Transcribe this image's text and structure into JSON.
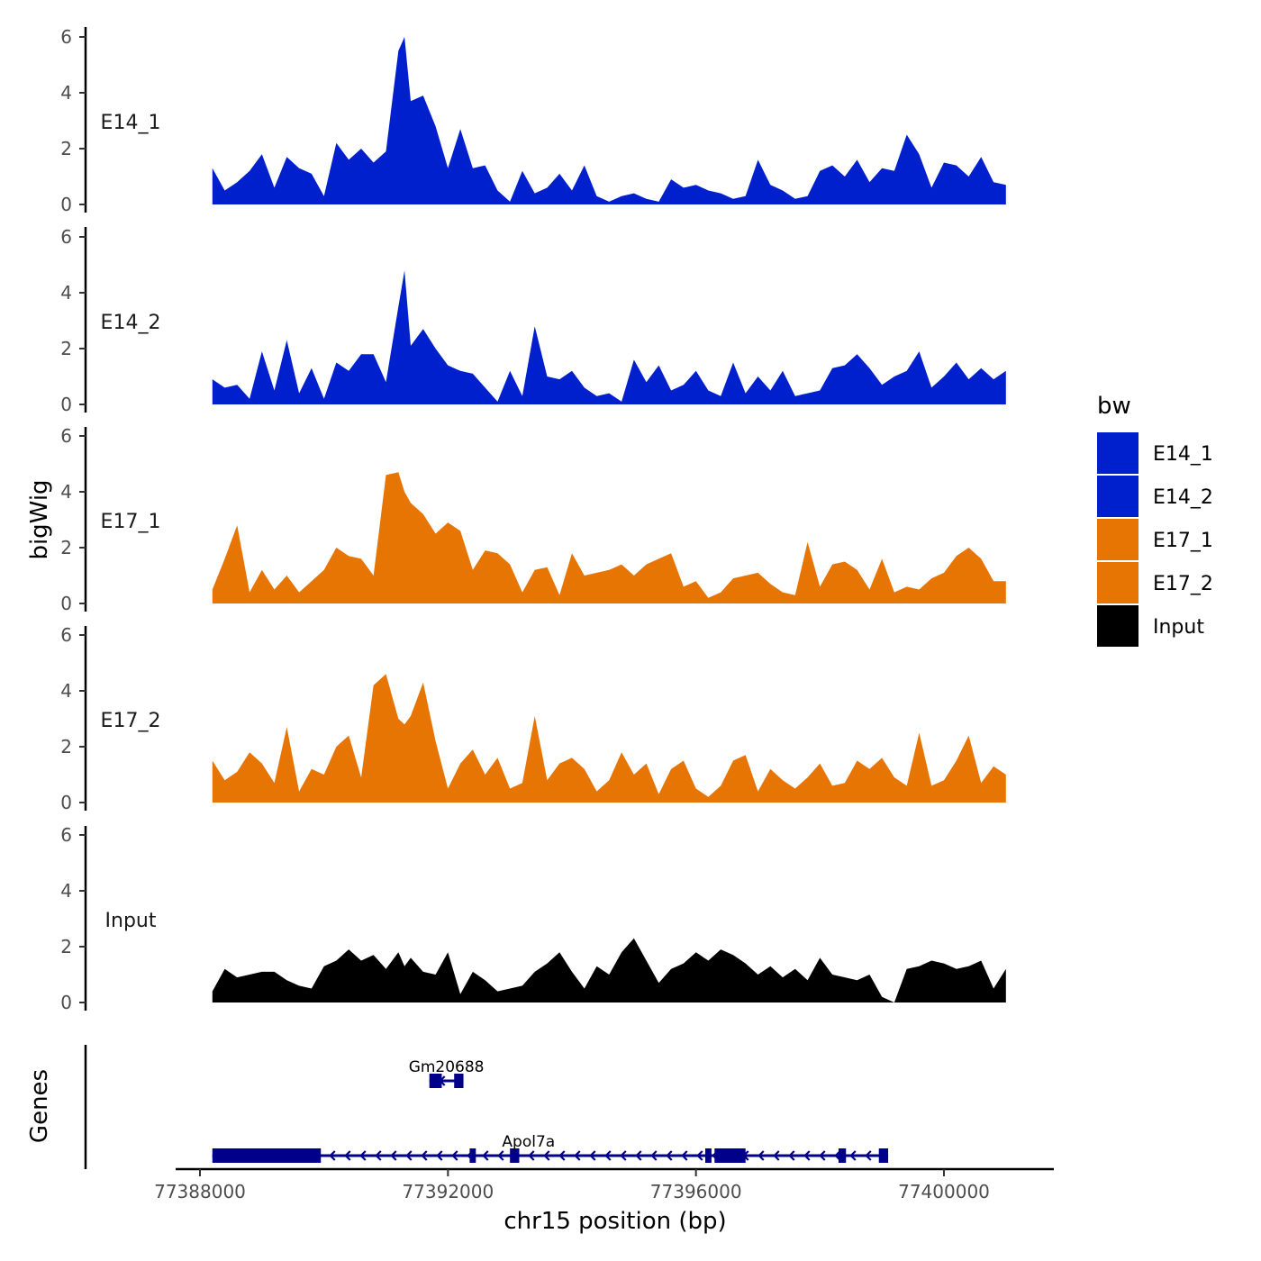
{
  "chart_data": {
    "type": "area",
    "ylabel": "bigWig",
    "xlabel": "chr15 position (bp)",
    "xlim": [
      77387600,
      77401800
    ],
    "ylim": [
      0,
      6.3
    ],
    "yticks": [
      0,
      2,
      4,
      6
    ],
    "xticks": [
      77388000,
      77392000,
      77396000,
      77400000
    ],
    "legend": {
      "title": "bw",
      "placement": "right",
      "entries": [
        {
          "name": "E14_1",
          "color": "#0020CD"
        },
        {
          "name": "E14_2",
          "color": "#0020CD"
        },
        {
          "name": "E17_1",
          "color": "#E77504"
        },
        {
          "name": "E17_2",
          "color": "#E77504"
        },
        {
          "name": "Input",
          "color": "#000000"
        }
      ]
    },
    "series": [
      {
        "name": "E14_1",
        "color": "#0020CD",
        "x": [
          77388200,
          77388400,
          77388600,
          77388800,
          77389000,
          77389200,
          77389400,
          77389600,
          77389800,
          77390000,
          77390200,
          77390400,
          77390600,
          77390800,
          77391000,
          77391200,
          77391300,
          77391400,
          77391600,
          77391800,
          77392000,
          77392200,
          77392400,
          77392600,
          77392800,
          77393000,
          77393200,
          77393400,
          77393600,
          77393800,
          77394000,
          77394200,
          77394400,
          77394600,
          77394800,
          77395000,
          77395200,
          77395400,
          77395600,
          77395800,
          77396000,
          77396200,
          77396400,
          77396600,
          77396800,
          77397000,
          77397200,
          77397400,
          77397600,
          77397800,
          77398000,
          77398200,
          77398400,
          77398600,
          77398800,
          77399000,
          77399200,
          77399400,
          77399600,
          77399800,
          77400000,
          77400200,
          77400400,
          77400600,
          77400800,
          77401000
        ],
        "values": [
          1.3,
          0.5,
          0.8,
          1.2,
          1.8,
          0.6,
          1.7,
          1.3,
          1.1,
          0.3,
          2.2,
          1.6,
          2.0,
          1.5,
          1.9,
          5.5,
          6.0,
          3.7,
          3.9,
          2.8,
          1.3,
          2.7,
          1.3,
          1.4,
          0.5,
          0.1,
          1.2,
          0.4,
          0.6,
          1.1,
          0.5,
          1.4,
          0.3,
          0.1,
          0.3,
          0.4,
          0.2,
          0.1,
          0.9,
          0.6,
          0.7,
          0.5,
          0.4,
          0.2,
          0.3,
          1.6,
          0.7,
          0.5,
          0.2,
          0.3,
          1.2,
          1.4,
          1.0,
          1.6,
          0.8,
          1.3,
          1.2,
          2.5,
          1.8,
          0.6,
          1.5,
          1.4,
          1.0,
          1.7,
          0.8,
          0.7
        ]
      },
      {
        "name": "E14_2",
        "color": "#0020CD",
        "x": [
          77388200,
          77388400,
          77388600,
          77388800,
          77389000,
          77389200,
          77389400,
          77389600,
          77389800,
          77390000,
          77390200,
          77390400,
          77390600,
          77390800,
          77391000,
          77391200,
          77391300,
          77391400,
          77391600,
          77391800,
          77392000,
          77392200,
          77392400,
          77392600,
          77392800,
          77393000,
          77393200,
          77393400,
          77393600,
          77393800,
          77394000,
          77394200,
          77394400,
          77394600,
          77394800,
          77395000,
          77395200,
          77395400,
          77395600,
          77395800,
          77396000,
          77396200,
          77396400,
          77396600,
          77396800,
          77397000,
          77397200,
          77397400,
          77397600,
          77397800,
          77398000,
          77398200,
          77398400,
          77398600,
          77398800,
          77399000,
          77399200,
          77399400,
          77399600,
          77399800,
          77400000,
          77400200,
          77400400,
          77400600,
          77400800,
          77401000
        ],
        "values": [
          0.9,
          0.6,
          0.7,
          0.2,
          1.9,
          0.5,
          2.3,
          0.4,
          1.3,
          0.2,
          1.5,
          1.2,
          1.8,
          1.8,
          0.8,
          3.5,
          4.8,
          2.1,
          2.7,
          2.0,
          1.4,
          1.2,
          1.1,
          0.6,
          0.1,
          1.2,
          0.3,
          2.8,
          1.0,
          0.9,
          1.2,
          0.6,
          0.3,
          0.4,
          0.1,
          1.6,
          0.8,
          1.4,
          0.5,
          0.7,
          1.2,
          0.5,
          0.3,
          1.5,
          0.4,
          1.0,
          0.5,
          1.2,
          0.3,
          0.4,
          0.5,
          1.3,
          1.4,
          1.8,
          1.3,
          0.7,
          1.0,
          1.2,
          1.9,
          0.6,
          1.0,
          1.5,
          0.9,
          1.3,
          0.9,
          1.2
        ]
      },
      {
        "name": "E17_1",
        "color": "#E77504",
        "x": [
          77388200,
          77388400,
          77388600,
          77388800,
          77389000,
          77389200,
          77389400,
          77389600,
          77389800,
          77390000,
          77390200,
          77390400,
          77390600,
          77390800,
          77391000,
          77391200,
          77391300,
          77391400,
          77391600,
          77391800,
          77392000,
          77392200,
          77392400,
          77392600,
          77392800,
          77393000,
          77393200,
          77393400,
          77393600,
          77393800,
          77394000,
          77394200,
          77394400,
          77394600,
          77394800,
          77395000,
          77395200,
          77395400,
          77395600,
          77395800,
          77396000,
          77396200,
          77396400,
          77396600,
          77396800,
          77397000,
          77397200,
          77397400,
          77397600,
          77397800,
          77398000,
          77398200,
          77398400,
          77398600,
          77398800,
          77399000,
          77399200,
          77399400,
          77399600,
          77399800,
          77400000,
          77400200,
          77400400,
          77400600,
          77400800,
          77401000
        ],
        "values": [
          0.5,
          1.6,
          2.8,
          0.4,
          1.2,
          0.5,
          1.0,
          0.4,
          0.8,
          1.2,
          2.0,
          1.7,
          1.6,
          1.0,
          4.6,
          4.7,
          4.0,
          3.6,
          3.2,
          2.5,
          2.9,
          2.6,
          1.2,
          1.9,
          1.8,
          1.4,
          0.4,
          1.2,
          1.3,
          0.3,
          1.8,
          1.0,
          1.1,
          1.2,
          1.4,
          1.0,
          1.4,
          1.6,
          1.8,
          0.6,
          0.8,
          0.2,
          0.4,
          0.9,
          1.0,
          1.1,
          0.7,
          0.4,
          0.3,
          2.2,
          0.6,
          1.4,
          1.5,
          1.2,
          0.5,
          1.6,
          0.4,
          0.6,
          0.5,
          0.9,
          1.1,
          1.7,
          2.0,
          1.6,
          0.8,
          0.8
        ]
      },
      {
        "name": "E17_2",
        "color": "#E77504",
        "x": [
          77388200,
          77388400,
          77388600,
          77388800,
          77389000,
          77389200,
          77389400,
          77389600,
          77389800,
          77390000,
          77390200,
          77390400,
          77390600,
          77390800,
          77391000,
          77391200,
          77391300,
          77391400,
          77391600,
          77391800,
          77392000,
          77392200,
          77392400,
          77392600,
          77392800,
          77393000,
          77393200,
          77393400,
          77393600,
          77393800,
          77394000,
          77394200,
          77394400,
          77394600,
          77394800,
          77395000,
          77395200,
          77395400,
          77395600,
          77395800,
          77396000,
          77396200,
          77396400,
          77396600,
          77396800,
          77397000,
          77397200,
          77397400,
          77397600,
          77397800,
          77398000,
          77398200,
          77398400,
          77398600,
          77398800,
          77399000,
          77399200,
          77399400,
          77399600,
          77399800,
          77400000,
          77400200,
          77400400,
          77400600,
          77400800,
          77401000
        ],
        "values": [
          1.5,
          0.8,
          1.1,
          1.8,
          1.4,
          0.7,
          2.7,
          0.4,
          1.2,
          1.0,
          2.0,
          2.4,
          0.9,
          4.2,
          4.6,
          3.0,
          2.8,
          3.1,
          4.3,
          2.2,
          0.5,
          1.4,
          1.9,
          1.0,
          1.6,
          0.5,
          0.7,
          3.1,
          0.8,
          1.4,
          1.6,
          1.2,
          0.4,
          0.8,
          1.8,
          1.0,
          1.4,
          0.3,
          1.2,
          1.5,
          0.5,
          0.2,
          0.6,
          1.5,
          1.7,
          0.4,
          1.2,
          0.8,
          0.5,
          0.9,
          1.4,
          0.6,
          0.7,
          1.5,
          1.2,
          1.6,
          0.9,
          0.6,
          2.5,
          0.6,
          0.8,
          1.5,
          2.4,
          0.7,
          1.3,
          1.0
        ]
      },
      {
        "name": "Input",
        "color": "#000000",
        "x": [
          77388200,
          77388400,
          77388600,
          77388800,
          77389000,
          77389200,
          77389400,
          77389600,
          77389800,
          77390000,
          77390200,
          77390400,
          77390600,
          77390800,
          77391000,
          77391200,
          77391300,
          77391400,
          77391600,
          77391800,
          77392000,
          77392200,
          77392400,
          77392600,
          77392800,
          77393000,
          77393200,
          77393400,
          77393600,
          77393800,
          77394000,
          77394200,
          77394400,
          77394600,
          77394800,
          77395000,
          77395200,
          77395400,
          77395600,
          77395800,
          77396000,
          77396200,
          77396400,
          77396600,
          77396800,
          77397000,
          77397200,
          77397400,
          77397600,
          77397800,
          77398000,
          77398200,
          77398400,
          77398600,
          77398800,
          77399000,
          77399200,
          77399400,
          77399600,
          77399800,
          77400000,
          77400200,
          77400400,
          77400600,
          77400800,
          77401000
        ],
        "values": [
          0.4,
          1.2,
          0.9,
          1.0,
          1.1,
          1.1,
          0.8,
          0.6,
          0.5,
          1.3,
          1.5,
          1.9,
          1.5,
          1.7,
          1.2,
          1.8,
          1.3,
          1.6,
          1.1,
          1.0,
          1.8,
          0.3,
          1.1,
          0.8,
          0.4,
          0.5,
          0.6,
          1.1,
          1.4,
          1.8,
          1.1,
          0.5,
          1.3,
          1.0,
          1.8,
          2.3,
          1.5,
          0.7,
          1.2,
          1.4,
          1.8,
          1.5,
          1.9,
          1.7,
          1.4,
          1.0,
          1.3,
          0.9,
          1.2,
          0.8,
          1.6,
          1.0,
          0.9,
          0.8,
          1.0,
          0.2,
          0.0,
          1.2,
          1.3,
          1.5,
          1.4,
          1.2,
          1.3,
          1.5,
          0.5,
          1.2
        ]
      }
    ],
    "genes": {
      "label": "Genes",
      "color": "#00008B",
      "items": [
        {
          "name": "Gm20688",
          "start": 77391700,
          "end": 77392250,
          "strand": "-",
          "exons": [
            [
              77391700,
              77391900
            ],
            [
              77392100,
              77392250
            ]
          ]
        },
        {
          "name": "Apol7a",
          "start": 77388200,
          "end": 77399100,
          "strand": "-",
          "exons": [
            [
              77388200,
              77389950
            ],
            [
              77392350,
              77392450
            ],
            [
              77393000,
              77393150
            ],
            [
              77396150,
              77396250
            ],
            [
              77396300,
              77396800
            ],
            [
              77398300,
              77398420
            ],
            [
              77398950,
              77399100
            ]
          ]
        }
      ]
    }
  }
}
